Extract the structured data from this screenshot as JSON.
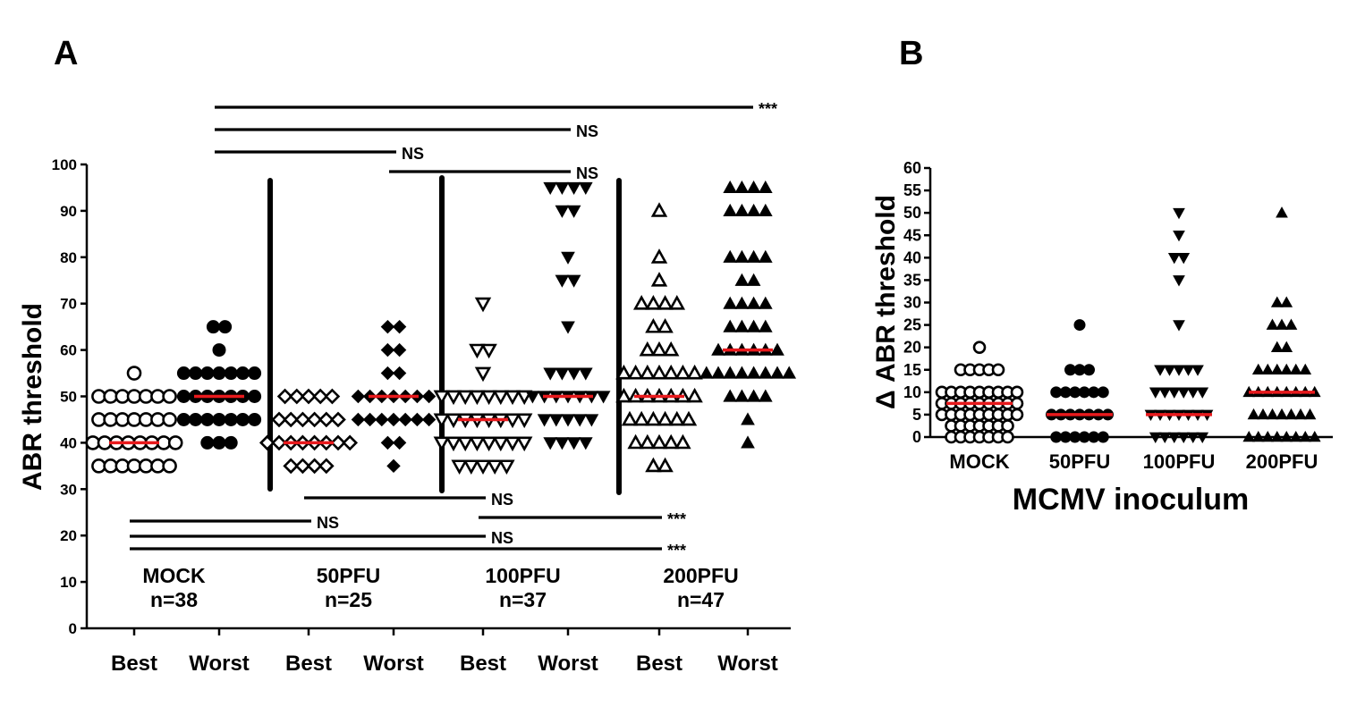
{
  "panel_labels": {
    "a": "A",
    "b": "B"
  },
  "colors": {
    "marker": "#000000",
    "median": "#e8191c",
    "axis": "#000000"
  },
  "chart_data": [
    {
      "type": "scatter",
      "panel": "A",
      "title": "",
      "ylabel": "ABR threshold",
      "ylim": [
        0,
        100
      ],
      "yticks": [
        0,
        10,
        20,
        30,
        40,
        50,
        60,
        70,
        80,
        90,
        100
      ],
      "categories": [
        "Best",
        "Worst",
        "Best",
        "Worst",
        "Best",
        "Worst",
        "Best",
        "Worst"
      ],
      "group_labels": [
        {
          "name": "MOCK",
          "n": "n=38"
        },
        {
          "name": "50PFU",
          "n": "n=25"
        },
        {
          "name": "100PFU",
          "n": "n=37"
        },
        {
          "name": "200PFU",
          "n": "n=47"
        }
      ],
      "series": [
        {
          "marker": "circle-open",
          "median": 40,
          "points": [
            [
              55,
              1
            ],
            [
              50,
              7
            ],
            [
              45,
              7
            ],
            [
              40,
              8
            ],
            [
              35,
              7
            ]
          ]
        },
        {
          "marker": "circle-filled",
          "median": 50,
          "points": [
            [
              65,
              2
            ],
            [
              60,
              1
            ],
            [
              55,
              7
            ],
            [
              50,
              7
            ],
            [
              45,
              7
            ],
            [
              40,
              3
            ]
          ]
        },
        {
          "marker": "diamond-open",
          "median": 40,
          "points": [
            [
              50,
              5
            ],
            [
              45,
              6
            ],
            [
              40,
              8
            ],
            [
              35,
              4
            ]
          ]
        },
        {
          "marker": "diamond-filled",
          "median": 50,
          "points": [
            [
              65,
              2
            ],
            [
              60,
              2
            ],
            [
              55,
              2
            ],
            [
              50,
              7
            ],
            [
              45,
              7
            ],
            [
              40,
              2
            ],
            [
              35,
              1
            ]
          ]
        },
        {
          "marker": "triangle-down-open",
          "median": 45,
          "points": [
            [
              70,
              1
            ],
            [
              60,
              2
            ],
            [
              55,
              1
            ],
            [
              50,
              8
            ],
            [
              45,
              8
            ],
            [
              40,
              8
            ],
            [
              35,
              5
            ]
          ]
        },
        {
          "marker": "triangle-down-filled",
          "median": 50,
          "points": [
            [
              95,
              4
            ],
            [
              90,
              2
            ],
            [
              80,
              1
            ],
            [
              75,
              2
            ],
            [
              65,
              1
            ],
            [
              55,
              4
            ],
            [
              50,
              7
            ],
            [
              45,
              5
            ],
            [
              40,
              4
            ]
          ]
        },
        {
          "marker": "triangle-up-open",
          "median": 50,
          "points": [
            [
              90,
              1
            ],
            [
              80,
              1
            ],
            [
              75,
              1
            ],
            [
              70,
              4
            ],
            [
              65,
              2
            ],
            [
              60,
              3
            ],
            [
              55,
              7
            ],
            [
              50,
              7
            ],
            [
              45,
              6
            ],
            [
              40,
              5
            ],
            [
              35,
              2
            ]
          ]
        },
        {
          "marker": "triangle-up-filled",
          "median": 60,
          "points": [
            [
              95,
              4
            ],
            [
              90,
              4
            ],
            [
              80,
              4
            ],
            [
              75,
              2
            ],
            [
              70,
              4
            ],
            [
              65,
              4
            ],
            [
              60,
              6
            ],
            [
              55,
              8
            ],
            [
              50,
              4
            ],
            [
              45,
              1
            ],
            [
              40,
              1
            ]
          ]
        }
      ],
      "comparisons": [
        {
          "from": 1,
          "to": 7,
          "level": 1,
          "label": "***"
        },
        {
          "from": 1,
          "to": 5,
          "level": 2,
          "label": "NS"
        },
        {
          "from": 1,
          "to": 3,
          "level": 3,
          "label": "NS"
        },
        {
          "from": 3,
          "to": 5,
          "level": 4,
          "label": "NS"
        },
        {
          "from": 2,
          "to": 4,
          "level": 5,
          "label": "NS"
        },
        {
          "from": 0,
          "to": 2,
          "level": 6,
          "label": "NS"
        },
        {
          "from": 4,
          "to": 6,
          "level": 7,
          "label": "***"
        },
        {
          "from": 0,
          "to": 4,
          "level": 8,
          "label": "NS"
        },
        {
          "from": 0,
          "to": 6,
          "level": 9,
          "label": "***"
        }
      ]
    },
    {
      "type": "scatter",
      "panel": "B",
      "title": "",
      "ylabel": "Δ ABR threshold",
      "xlabel": "MCMV inoculum",
      "ylim": [
        0,
        60
      ],
      "yticks": [
        0,
        5,
        10,
        15,
        20,
        25,
        30,
        35,
        40,
        45,
        50,
        55,
        60
      ],
      "categories": [
        "MOCK",
        "50PFU",
        "100PFU",
        "200PFU"
      ],
      "series": [
        {
          "marker": "circle-open",
          "median": 7.5,
          "points": [
            [
              20,
              1
            ],
            [
              15,
              5
            ],
            [
              10,
              9
            ],
            [
              7.5,
              9
            ],
            [
              5,
              9
            ],
            [
              2.5,
              7
            ],
            [
              0,
              7
            ]
          ]
        },
        {
          "marker": "circle-filled",
          "median": 5,
          "points": [
            [
              25,
              1
            ],
            [
              15,
              3
            ],
            [
              10,
              6
            ],
            [
              5,
              7
            ],
            [
              0,
              6
            ]
          ]
        },
        {
          "marker": "triangle-down-filled",
          "median": 5,
          "points": [
            [
              50,
              1
            ],
            [
              45,
              1
            ],
            [
              40,
              2
            ],
            [
              35,
              1
            ],
            [
              25,
              1
            ],
            [
              15,
              5
            ],
            [
              10,
              6
            ],
            [
              5,
              7
            ],
            [
              0,
              6
            ]
          ]
        },
        {
          "marker": "triangle-up-filled",
          "median": 10,
          "points": [
            [
              50,
              1
            ],
            [
              30,
              2
            ],
            [
              25,
              3
            ],
            [
              20,
              2
            ],
            [
              15,
              6
            ],
            [
              10,
              8
            ],
            [
              5,
              7
            ],
            [
              0,
              8
            ]
          ]
        }
      ]
    }
  ]
}
